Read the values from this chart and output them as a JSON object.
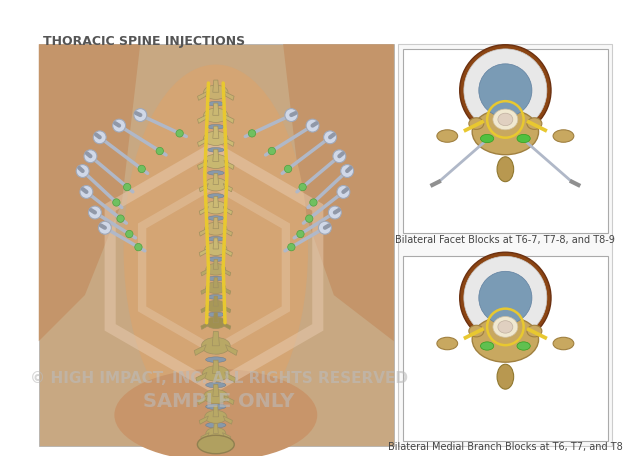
{
  "title": "THORACIC SPINE INJECTIONS",
  "caption_top": "Bilateral Facet Blocks at T6-7, T7-8, and T8-9",
  "caption_bottom": "Bilateral Medial Branch Blocks at T6, T7, and T8",
  "watermark_line1": "© HIGH IMPACT, INC. ALL RIGHTS RESERVED",
  "watermark_line2": "SAMPLE ONLY",
  "bg_color": "#ffffff",
  "title_color": "#555555",
  "title_fontsize": 9,
  "main_bg": "#c8a882",
  "spine_panel_bg": "#f5f0ea",
  "inset_bg": "#ffffff",
  "caption_color": "#444444",
  "caption_fontsize": 7,
  "watermark_color": "#bbbbbb",
  "watermark_fontsize": 11
}
